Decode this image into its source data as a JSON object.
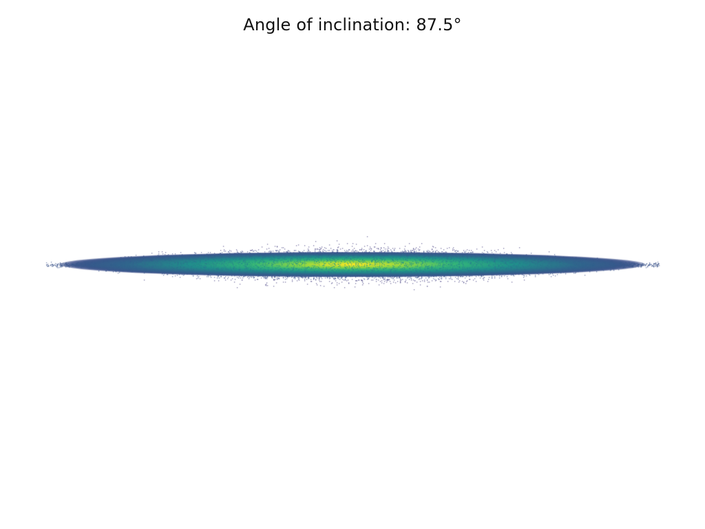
{
  "title": "Angle of inclination: 87.5°",
  "colormap": "viridis",
  "colors": {
    "background": "#ffffff",
    "low": "#3b4f8a",
    "mid": "#20a387",
    "high": "#fde725"
  }
}
